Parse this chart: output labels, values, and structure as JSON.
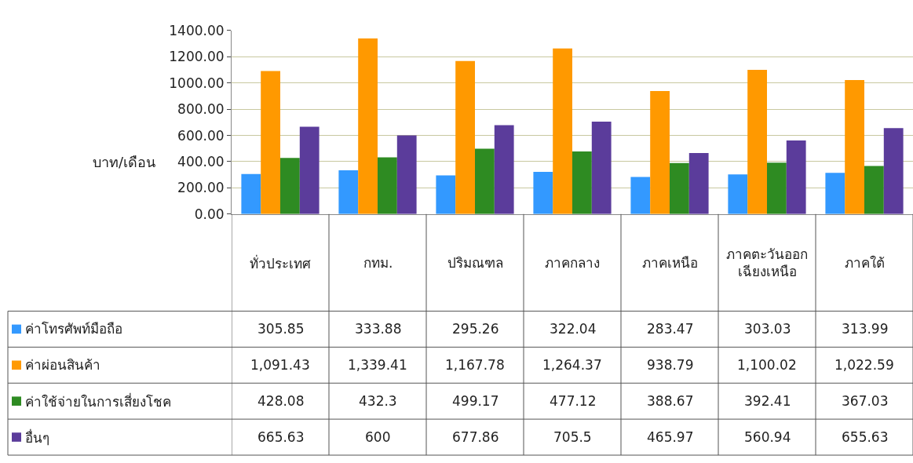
{
  "chart_data": {
    "type": "bar",
    "ylabel": "บาท/เดือน",
    "categories": [
      "ทั่วประเทศ",
      "กทม.",
      "ปริมณฑล",
      "ภาคกลาง",
      "ภาคเหนือ",
      "ภาคตะวันออกเฉียงเหนือ",
      "ภาคใต้"
    ],
    "series": [
      {
        "name": "ค่าโทรศัพท์มือถือ",
        "color": "#3399ff",
        "values": [
          305.85,
          333.88,
          295.26,
          322.04,
          283.47,
          303.03,
          313.99
        ],
        "value_labels": [
          "305.85",
          "333.88",
          "295.26",
          "322.04",
          "283.47",
          "303.03",
          "313.99"
        ]
      },
      {
        "name": "ค่าผ่อนสินค้า",
        "color": "#ff9900",
        "values": [
          1091.43,
          1339.41,
          1167.78,
          1264.37,
          938.79,
          1100.02,
          1022.59
        ],
        "value_labels": [
          "1,091.43",
          "1,339.41",
          "1,167.78",
          "1,264.37",
          "938.79",
          "1,100.02",
          "1,022.59"
        ]
      },
      {
        "name": "ค่าใช้จ่ายในการเสี่ยงโชค",
        "color": "#2e8b22",
        "values": [
          428.08,
          432.3,
          499.17,
          477.12,
          388.67,
          392.41,
          367.03
        ],
        "value_labels": [
          "428.08",
          "432.3",
          "499.17",
          "477.12",
          "388.67",
          "392.41",
          "367.03"
        ]
      },
      {
        "name": "อื่นๆ",
        "color": "#5b3c9b",
        "values": [
          665.63,
          600,
          677.86,
          705.5,
          465.97,
          560.94,
          655.63
        ],
        "value_labels": [
          "665.63",
          "600",
          "677.86",
          "705.5",
          "465.97",
          "560.94",
          "655.63"
        ]
      }
    ],
    "ylim": [
      0,
      1400
    ],
    "yticks": [
      {
        "value": 0,
        "label": "0.00"
      },
      {
        "value": 200,
        "label": "200.00"
      },
      {
        "value": 400,
        "label": "400.00"
      },
      {
        "value": 600,
        "label": "600.00"
      },
      {
        "value": 800,
        "label": "800.00"
      },
      {
        "value": 1000,
        "label": "1000.00"
      },
      {
        "value": 1200,
        "label": "1200.00"
      },
      {
        "value": 1400,
        "label": "1400.00"
      }
    ],
    "grid": "y",
    "legend": "bottom left"
  }
}
